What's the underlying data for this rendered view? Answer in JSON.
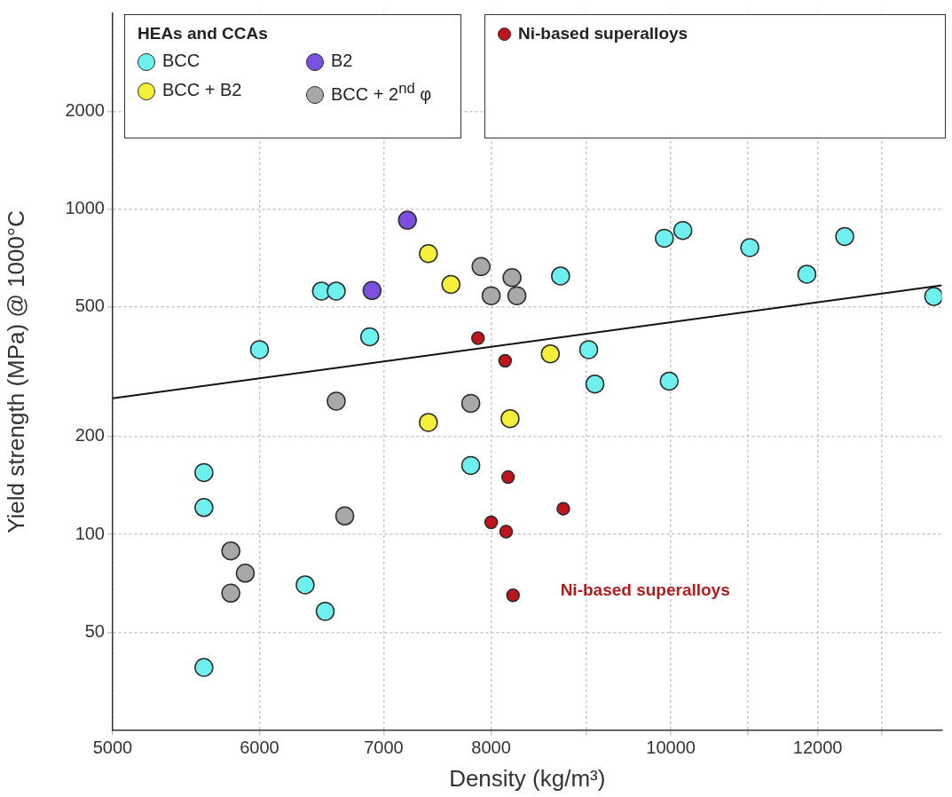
{
  "chart_data": {
    "type": "scatter",
    "xlabel": "Density (kg/m³)",
    "ylabel": "Yield strength (MPa) @ 1000°C",
    "legend_title": "HEAs and CCAs",
    "legend": "top left",
    "log": "xy",
    "grid": true,
    "xlim": [
      5000,
      14000
    ],
    "xticks": [
      5000,
      6000,
      7000,
      8000,
      {
        "value": 9000,
        "label": null
      },
      10000,
      {
        "value": 11000,
        "label": null
      },
      12000,
      {
        "value": 13000,
        "label": null
      }
    ],
    "ylim": [
      25,
      4000
    ],
    "yticks": [
      50,
      100,
      200,
      500,
      1000,
      2000
    ],
    "series": [
      {
        "name": "BCC",
        "color": "#6ef0ef",
        "marker": "circle",
        "x": [
          5600,
          5600,
          5600,
          6000,
          6480,
          6600,
          6880,
          6350,
          6510,
          7800,
          8720,
          9030,
          9100,
          9980,
          9920,
          10150,
          11030,
          11840,
          12410,
          13860
        ],
        "values": [
          155,
          121,
          39,
          370,
          560,
          560,
          405,
          70,
          58,
          163,
          623,
          370,
          290,
          296,
          814,
          860,
          762,
          631,
          824,
          539
        ]
      },
      {
        "name": "B2",
        "color": "#7b4fe0",
        "marker": "circle",
        "x": [
          7210,
          6900
        ],
        "values": [
          925,
          562
        ]
      },
      {
        "name": "BCC + B2",
        "color": "#f5ef3a",
        "marker": "circle",
        "x": [
          7400,
          7610,
          8610,
          7400,
          8190
        ],
        "values": [
          730,
          587,
          359,
          221,
          227
        ]
      },
      {
        "name": "BCC + 2$^{nd}$ φ",
        "color": "#a8a8a8",
        "marker": "circle",
        "x": [
          7900,
          8210,
          8000,
          8260,
          6600,
          7800,
          6670,
          5790,
          5895,
          5790
        ],
        "values": [
          666,
          616,
          542,
          542,
          257,
          253,
          114,
          89,
          76,
          66
        ]
      },
      {
        "name": "Ni-based superalloys",
        "color": "#c0141c",
        "marker": "circle",
        "x": [
          7870,
          8140,
          8170,
          8750,
          8000,
          8150,
          8220
        ],
        "values": [
          401,
          342,
          150,
          120,
          109,
          102,
          65
        ]
      },
      {
        "type": "line",
        "color": "#111111",
        "x": [
          5000,
          14000
        ],
        "values": [
          262,
          583
        ]
      }
    ],
    "annotations": [
      "Ni-based superalloys"
    ]
  }
}
